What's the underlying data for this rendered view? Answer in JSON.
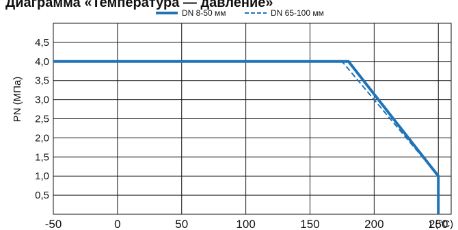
{
  "chart_data": {
    "type": "line",
    "title": "Диаграмма «Температура — давление»",
    "xlabel": "t (°C)",
    "ylabel": "PN (МПа)",
    "xlim": [
      -50,
      260
    ],
    "ylim": [
      0,
      5
    ],
    "x_ticks": [
      "-50",
      "0",
      "50",
      "100",
      "150",
      "200",
      "250"
    ],
    "x_tick_values": [
      -50,
      0,
      50,
      100,
      150,
      200,
      250
    ],
    "y_ticks": [
      "0,5",
      "1,0",
      "1,5",
      "2,0",
      "2,5",
      "3,0",
      "3,5",
      "4,0",
      "4,5"
    ],
    "y_tick_values": [
      0.5,
      1.0,
      1.5,
      2.0,
      2.5,
      3.0,
      3.5,
      4.0,
      4.5
    ],
    "grid": true,
    "legend_position": "top",
    "series": [
      {
        "name": "DN 8-50 мм",
        "style": "solid",
        "color": "#1f73b7",
        "points": [
          [
            -50,
            4.0
          ],
          [
            180,
            4.0
          ],
          [
            250,
            1.0
          ],
          [
            250,
            0.0
          ]
        ]
      },
      {
        "name": "DN 65-100 мм",
        "style": "dashed",
        "color": "#1f73b7",
        "points": [
          [
            -50,
            4.0
          ],
          [
            175,
            4.0
          ],
          [
            250,
            1.0
          ]
        ]
      }
    ]
  }
}
